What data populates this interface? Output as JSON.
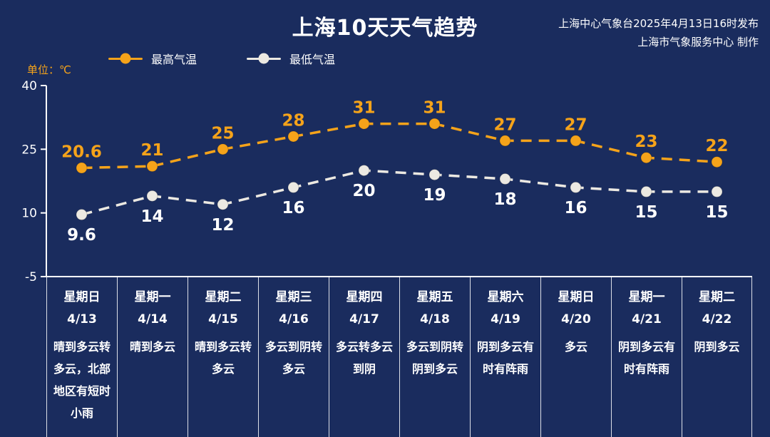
{
  "header": {
    "title": "上海10天天气趋势",
    "source_line1": "上海中心气象台2025年4月13日16时发布",
    "source_line2": "上海市气象服务中心 制作"
  },
  "legend": {
    "high_label": "最高气温",
    "low_label": "最低气温",
    "unit_label": "单位：℃"
  },
  "colors": {
    "background": "#1a2c5e",
    "high": "#f5a31a",
    "low": "#ece9e2",
    "axis": "#ffffff",
    "unit_text": "#f5a31a"
  },
  "chart_data": {
    "type": "line",
    "title": "上海10天天气趋势",
    "categories": [
      "4/13",
      "4/14",
      "4/15",
      "4/16",
      "4/17",
      "4/18",
      "4/19",
      "4/20",
      "4/21",
      "4/22"
    ],
    "series": [
      {
        "name": "最高气温",
        "color": "#f5a31a",
        "values": [
          20.6,
          21,
          25,
          28,
          31,
          31,
          27,
          27,
          23,
          22
        ]
      },
      {
        "name": "最低气温",
        "color": "#ece9e2",
        "values": [
          9.6,
          14,
          12,
          16,
          20,
          19,
          18,
          16,
          15,
          15
        ]
      }
    ],
    "ylabel": "单位：℃",
    "ylim": [
      -5,
      40
    ],
    "yticks": [
      40,
      25,
      10,
      -5
    ],
    "grid": false,
    "line_style": "dashed",
    "legend_position": "top"
  },
  "days": [
    {
      "weekday": "星期日",
      "date": "4/13",
      "desc": "晴到多云转多云，北部地区有短时小雨"
    },
    {
      "weekday": "星期一",
      "date": "4/14",
      "desc": "晴到多云"
    },
    {
      "weekday": "星期二",
      "date": "4/15",
      "desc": "晴到多云转多云"
    },
    {
      "weekday": "星期三",
      "date": "4/16",
      "desc": "多云到阴转多云"
    },
    {
      "weekday": "星期四",
      "date": "4/17",
      "desc": "多云转多云到阴"
    },
    {
      "weekday": "星期五",
      "date": "4/18",
      "desc": "多云到阴转阴到多云"
    },
    {
      "weekday": "星期六",
      "date": "4/19",
      "desc": "阴到多云有时有阵雨"
    },
    {
      "weekday": "星期日",
      "date": "4/20",
      "desc": "多云"
    },
    {
      "weekday": "星期一",
      "date": "4/21",
      "desc": "阴到多云有时有阵雨"
    },
    {
      "weekday": "星期二",
      "date": "4/22",
      "desc": "阴到多云"
    }
  ]
}
